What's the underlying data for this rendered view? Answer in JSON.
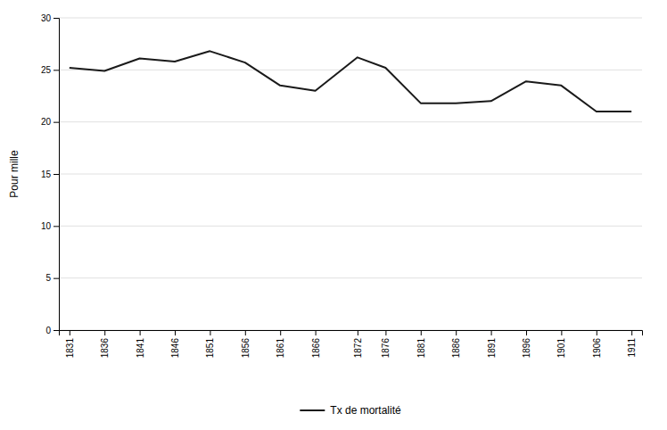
{
  "chart_data": {
    "type": "line",
    "ylabel": "Pour mille",
    "x": [
      1831,
      1836,
      1841,
      1846,
      1851,
      1856,
      1861,
      1866,
      1872,
      1876,
      1881,
      1886,
      1891,
      1896,
      1901,
      1906,
      1911
    ],
    "series": [
      {
        "name": "Tx de mortalité",
        "color": "#1a1a1a",
        "values": [
          25.2,
          24.9,
          26.1,
          25.8,
          26.8,
          25.7,
          23.5,
          23.0,
          26.2,
          25.2,
          21.8,
          21.8,
          22.0,
          23.9,
          23.5,
          21.0,
          21.0
        ]
      }
    ],
    "xlim": [
      1829.5,
      1912.5
    ],
    "xticks": [
      1831,
      1836,
      1841,
      1846,
      1851,
      1856,
      1861,
      1866,
      1872,
      1876,
      1881,
      1886,
      1891,
      1896,
      1901,
      1906,
      1911
    ],
    "ylim": [
      0,
      30
    ],
    "yticks": [
      0,
      5,
      10,
      15,
      20,
      25,
      30
    ],
    "grid": true,
    "legend": "bottom"
  }
}
